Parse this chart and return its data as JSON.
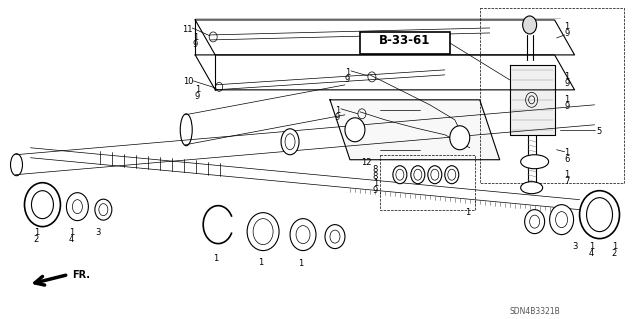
{
  "background_color": "#ffffff",
  "bold_label": "B-33-61",
  "part_code": "SDN4B3321B",
  "fr_label": "FR.",
  "fig_width": 6.4,
  "fig_height": 3.19,
  "dpi": 100,
  "black": "#000000",
  "gray": "#888888",
  "lgray": "#cccccc"
}
